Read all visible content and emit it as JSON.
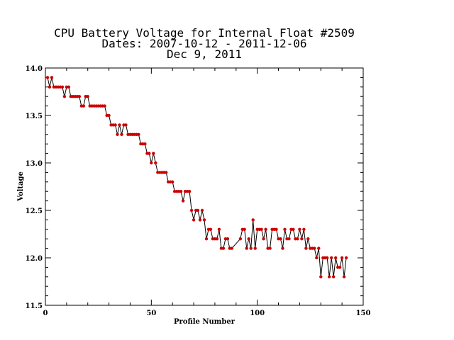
{
  "chart_data": {
    "type": "line",
    "title_lines": [
      "CPU Battery Voltage for Internal Float #2509",
      "Dates:  2007-10-12 -  2011-12-06",
      "Dec  9, 2011"
    ],
    "xlabel": "Profile Number",
    "ylabel": "Voltage",
    "xlim": [
      0,
      150
    ],
    "ylim": [
      11.5,
      14.0
    ],
    "xticks": [
      "0",
      "50",
      "100",
      "150"
    ],
    "yticks": [
      "11.5",
      "12.0",
      "12.5",
      "13.0",
      "13.5",
      "14.0"
    ],
    "line_color": "#000000",
    "marker_color": "#cc0000",
    "series": [
      {
        "x": [
          1,
          2,
          3,
          4,
          5,
          6,
          7,
          8,
          9,
          10,
          11,
          12,
          13,
          14,
          15,
          16,
          17,
          18,
          19,
          20,
          21,
          22,
          23,
          24,
          25,
          26,
          27,
          28,
          29,
          30,
          31,
          32,
          33,
          34,
          35,
          36,
          37,
          38,
          39,
          40,
          41,
          42,
          43,
          44,
          45,
          46,
          47,
          48,
          49,
          50,
          51,
          52,
          53,
          54,
          55,
          56,
          57,
          58,
          59,
          60,
          61,
          62,
          63,
          64,
          65,
          66,
          67,
          68,
          69,
          70,
          71,
          72,
          73,
          74,
          75,
          76,
          77,
          78,
          79,
          80,
          81,
          82,
          83,
          84,
          85,
          86,
          87,
          88,
          92,
          93,
          94,
          95,
          96,
          97,
          98,
          99,
          100,
          101,
          102,
          103,
          104,
          105,
          106,
          107,
          108,
          109,
          110,
          111,
          112,
          113,
          114,
          115,
          116,
          117,
          118,
          119,
          120,
          121,
          122,
          123,
          124,
          125,
          126,
          127,
          128,
          129,
          130,
          131,
          132,
          133,
          134,
          135,
          136,
          137,
          138,
          139,
          140,
          141,
          142
        ],
        "y": [
          13.9,
          13.8,
          13.9,
          13.8,
          13.8,
          13.8,
          13.8,
          13.8,
          13.7,
          13.8,
          13.8,
          13.7,
          13.7,
          13.7,
          13.7,
          13.7,
          13.6,
          13.6,
          13.7,
          13.7,
          13.6,
          13.6,
          13.6,
          13.6,
          13.6,
          13.6,
          13.6,
          13.6,
          13.5,
          13.5,
          13.4,
          13.4,
          13.4,
          13.3,
          13.4,
          13.3,
          13.4,
          13.4,
          13.3,
          13.3,
          13.3,
          13.3,
          13.3,
          13.3,
          13.2,
          13.2,
          13.2,
          13.1,
          13.1,
          13.0,
          13.1,
          13.0,
          12.9,
          12.9,
          12.9,
          12.9,
          12.9,
          12.8,
          12.8,
          12.8,
          12.7,
          12.7,
          12.7,
          12.7,
          12.6,
          12.7,
          12.7,
          12.7,
          12.5,
          12.4,
          12.5,
          12.5,
          12.4,
          12.5,
          12.4,
          12.2,
          12.3,
          12.3,
          12.2,
          12.2,
          12.2,
          12.3,
          12.1,
          12.1,
          12.2,
          12.2,
          12.1,
          12.1,
          12.2,
          12.3,
          12.3,
          12.1,
          12.2,
          12.1,
          12.4,
          12.1,
          12.3,
          12.3,
          12.3,
          12.2,
          12.3,
          12.1,
          12.1,
          12.3,
          12.3,
          12.3,
          12.2,
          12.2,
          12.1,
          12.3,
          12.2,
          12.2,
          12.3,
          12.3,
          12.2,
          12.2,
          12.3,
          12.2,
          12.3,
          12.1,
          12.2,
          12.1,
          12.1,
          12.1,
          12.0,
          12.1,
          11.8,
          12.0,
          12.0,
          12.0,
          11.8,
          12.0,
          11.8,
          12.0,
          11.9,
          11.9,
          12.0,
          11.8,
          12.0
        ]
      }
    ]
  }
}
